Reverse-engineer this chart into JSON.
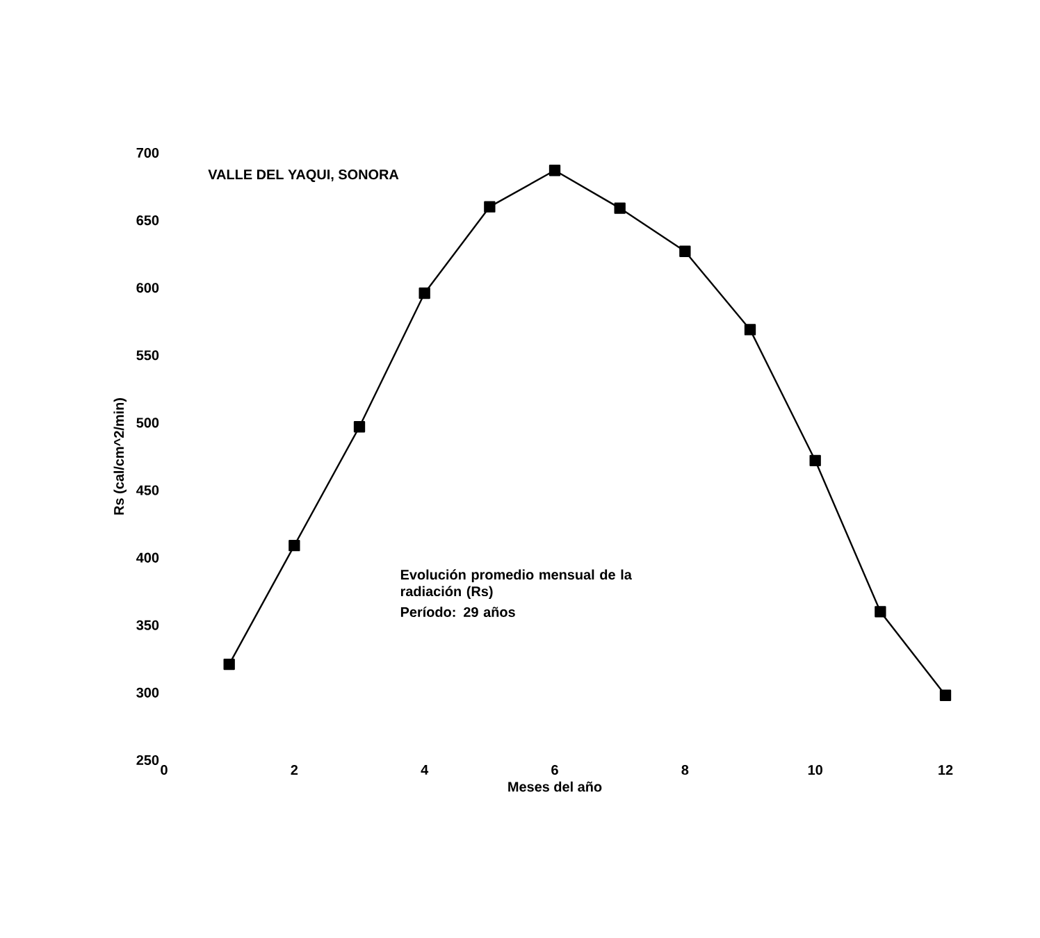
{
  "chart_data": {
    "type": "line",
    "title": "VALLE DEL YAQUI, SONORA",
    "xlabel": "Meses del año",
    "ylabel": "Rs (cal/cm^2/min)",
    "x": [
      1,
      2,
      3,
      4,
      5,
      6,
      7,
      8,
      9,
      10,
      11,
      12
    ],
    "series": [
      {
        "color": "#000000",
        "values": [
          321,
          409,
          497,
          596,
          660,
          687,
          659,
          627,
          569,
          472,
          360,
          298
        ]
      }
    ],
    "xlim": [
      0,
      12
    ],
    "ylim": [
      250,
      700
    ],
    "xticks": [
      0,
      2,
      4,
      6,
      8,
      10,
      12
    ],
    "yticks": [
      250,
      300,
      350,
      400,
      450,
      500,
      550,
      600,
      650,
      700
    ],
    "marker": "square",
    "line_style": "solid",
    "grid": false,
    "annotations": [
      "Evolución promedio mensual de la radiación (Rs)",
      "Período: 29 años"
    ]
  }
}
